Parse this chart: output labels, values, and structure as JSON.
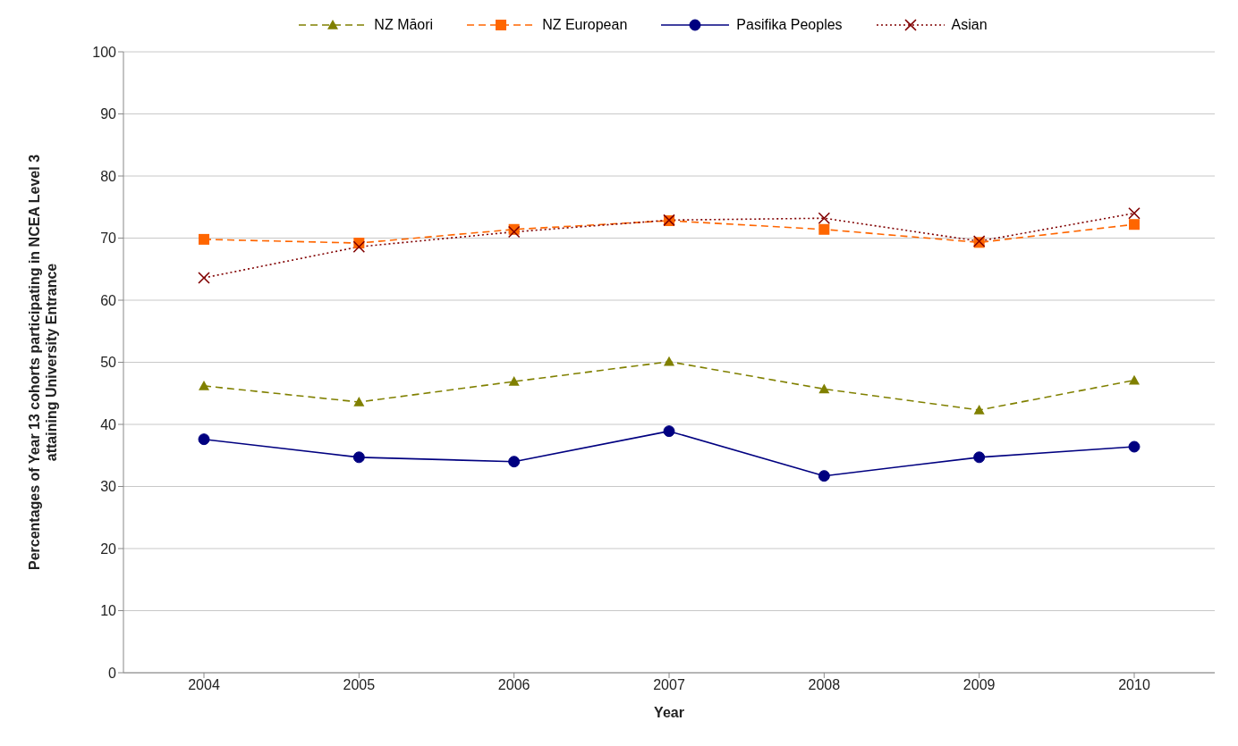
{
  "chart_data": {
    "type": "line",
    "xlabel": "Year",
    "ylabel": "Percentages of Year 13 cohorts participating in NCEA Level 3 attaining University Entrance",
    "categories": [
      "2004",
      "2005",
      "2006",
      "2007",
      "2008",
      "2009",
      "2010"
    ],
    "series": [
      {
        "name": "NZ Māori",
        "color": "#808000",
        "marker": "triangle",
        "line_style": "dashed",
        "values": [
          46.2,
          43.6,
          46.9,
          50.1,
          45.7,
          42.3,
          47.1
        ]
      },
      {
        "name": "NZ European",
        "color": "#ff6600",
        "marker": "square",
        "line_style": "dashed",
        "values": [
          69.8,
          69.2,
          71.4,
          72.8,
          71.4,
          69.3,
          72.2
        ]
      },
      {
        "name": "Pasifika Peoples",
        "color": "#000080",
        "marker": "circle",
        "line_style": "solid",
        "values": [
          37.6,
          34.7,
          34.0,
          38.9,
          31.7,
          34.7,
          36.4
        ]
      },
      {
        "name": "Asian",
        "color": "#800000",
        "marker": "cross",
        "line_style": "dotted",
        "values": [
          63.6,
          68.6,
          71.0,
          72.9,
          73.2,
          69.5,
          74.0
        ]
      }
    ],
    "ylim": [
      0,
      100
    ],
    "yticks": [
      0,
      10,
      20,
      30,
      40,
      50,
      60,
      70,
      80,
      90,
      100
    ],
    "grid": "y",
    "legend": "top"
  }
}
